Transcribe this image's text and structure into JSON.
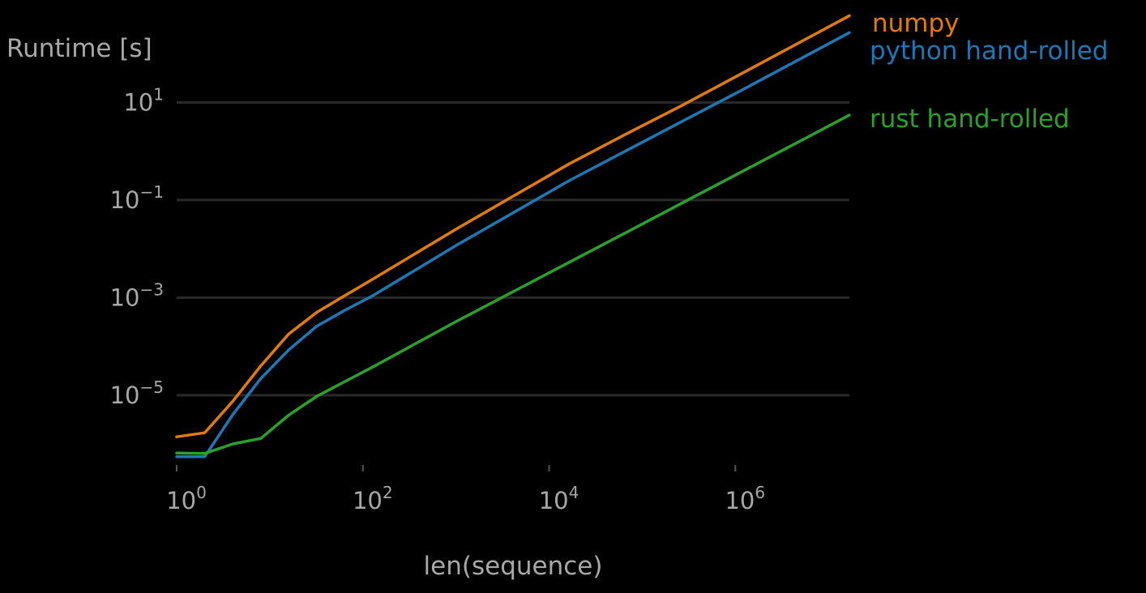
{
  "chart_data": {
    "type": "line",
    "title": "",
    "xlabel": "len(sequence)",
    "ylabel": "Runtime [s]",
    "xscale": "log",
    "yscale": "log",
    "xlim": [
      1,
      16777216
    ],
    "ylim": [
      4e-07,
      400
    ],
    "grid": "horizontal",
    "legend": "inline labels at line ends (right)",
    "x_ticks": [
      {
        "base": "10",
        "exp": "0",
        "value": 1
      },
      {
        "base": "10",
        "exp": "2",
        "value": 100
      },
      {
        "base": "10",
        "exp": "4",
        "value": 10000
      },
      {
        "base": "10",
        "exp": "6",
        "value": 1000000
      }
    ],
    "y_ticks": [
      {
        "base": "10",
        "exp": "1",
        "value": 10
      },
      {
        "base": "10",
        "exp": "−1",
        "value": 0.1
      },
      {
        "base": "10",
        "exp": "−3",
        "value": 0.001
      },
      {
        "base": "10",
        "exp": "−5",
        "value": 1e-05
      }
    ],
    "series": [
      {
        "name": "numpy",
        "color": "#e07b10",
        "x": [
          1,
          2,
          4,
          8,
          16,
          32,
          64,
          128,
          1024,
          16384,
          65536,
          262144,
          1048576,
          16777216
        ],
        "y": [
          1.4e-06,
          1.7e-06,
          7.5e-06,
          4e-05,
          0.00018,
          0.0005,
          0.0011,
          0.0024,
          0.026,
          0.55,
          2.2,
          8.5,
          35,
          600
        ]
      },
      {
        "name": "python hand-rolled",
        "color": "#1f77b4",
        "x": [
          1,
          2,
          4,
          8,
          16,
          32,
          64,
          128,
          1024,
          16384,
          65536,
          262144,
          1048576,
          16777216
        ],
        "y": [
          5.5e-07,
          5.5e-07,
          4e-06,
          2.2e-05,
          8.5e-05,
          0.00026,
          0.00055,
          0.0011,
          0.012,
          0.25,
          1.0,
          4.0,
          16,
          270
        ]
      },
      {
        "name": "rust hand-rolled",
        "color": "#2ca02c",
        "x": [
          1,
          2,
          4,
          8,
          16,
          32,
          64,
          128,
          1024,
          16384,
          65536,
          262144,
          1048576,
          16777216
        ],
        "y": [
          6.5e-07,
          6.4e-07,
          1e-06,
          1.3e-06,
          3.9e-06,
          9.5e-06,
          1.9e-05,
          3.8e-05,
          0.00033,
          0.0053,
          0.021,
          0.085,
          0.34,
          5.5
        ]
      }
    ]
  }
}
